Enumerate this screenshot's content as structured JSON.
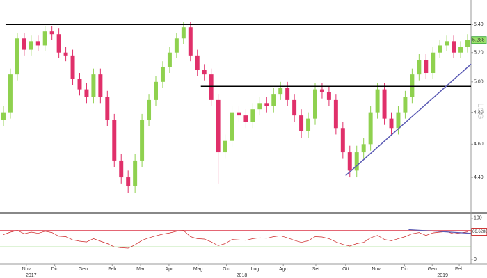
{
  "chart_data": [
    {
      "type": "candlestick",
      "log_scale": true,
      "watermark": "LOG",
      "up_color": "#8fd14f",
      "down_color": "#e0306a",
      "ylim": [
        4.2,
        5.58
      ],
      "xlim": [
        0,
        68
      ],
      "yticks": [
        {
          "value": 5.4,
          "label": "5.40"
        },
        {
          "value": 5.2,
          "label": "5.20"
        },
        {
          "value": 5.0,
          "label": "5.00"
        },
        {
          "value": 4.8,
          "label": "4.80"
        },
        {
          "value": 4.6,
          "label": "4.60"
        },
        {
          "value": 4.4,
          "label": "4.40"
        }
      ],
      "open": [
        4.75,
        4.8,
        5.05,
        5.3,
        5.22,
        5.28,
        5.25,
        5.35,
        5.33,
        5.2,
        5.18,
        5.02,
        4.95,
        4.9,
        5.05,
        4.9,
        4.75,
        4.5,
        4.4,
        4.35,
        4.5,
        4.75,
        4.88,
        5.0,
        5.1,
        5.2,
        5.3,
        5.38,
        5.18,
        5.08,
        5.05,
        4.88,
        4.55,
        4.62,
        4.8,
        4.78,
        4.74,
        4.82,
        4.86,
        4.84,
        4.92,
        4.96,
        4.88,
        4.78,
        4.68,
        4.76,
        4.95,
        4.93,
        4.88,
        4.7,
        4.55,
        4.44,
        4.55,
        4.6,
        4.8,
        4.95,
        4.76,
        4.7,
        4.8,
        4.9,
        5.05,
        5.15,
        5.06,
        5.2,
        5.25,
        5.28,
        5.2,
        5.24
      ],
      "high": [
        4.84,
        5.09,
        5.34,
        5.34,
        5.32,
        5.32,
        5.39,
        5.39,
        5.37,
        5.24,
        5.22,
        5.06,
        4.99,
        5.09,
        5.09,
        4.94,
        4.79,
        4.54,
        4.44,
        4.54,
        4.79,
        4.92,
        5.04,
        5.14,
        5.24,
        5.34,
        5.42,
        5.42,
        5.22,
        5.12,
        5.09,
        4.92,
        4.66,
        4.84,
        4.84,
        4.82,
        4.86,
        4.9,
        4.9,
        4.96,
        5.0,
        5.0,
        4.92,
        4.82,
        4.8,
        4.99,
        4.99,
        4.97,
        4.92,
        4.74,
        4.59,
        4.59,
        4.64,
        4.84,
        4.99,
        4.99,
        4.8,
        4.84,
        4.94,
        5.09,
        5.19,
        5.19,
        5.24,
        5.29,
        5.32,
        5.32,
        5.28,
        5.33
      ],
      "low": [
        4.71,
        4.76,
        5.01,
        5.18,
        5.18,
        5.21,
        5.21,
        5.29,
        5.16,
        5.14,
        4.98,
        4.91,
        4.86,
        4.86,
        4.86,
        4.71,
        4.46,
        4.36,
        4.31,
        4.31,
        4.46,
        4.71,
        4.84,
        4.96,
        5.06,
        5.16,
        5.26,
        5.14,
        5.04,
        5.01,
        4.84,
        4.36,
        4.51,
        4.58,
        4.74,
        4.7,
        4.7,
        4.78,
        4.8,
        4.8,
        4.88,
        4.84,
        4.74,
        4.64,
        4.64,
        4.72,
        4.89,
        4.84,
        4.66,
        4.51,
        4.4,
        4.4,
        4.51,
        4.56,
        4.76,
        4.72,
        4.66,
        4.66,
        4.76,
        4.86,
        5.01,
        5.02,
        5.02,
        5.16,
        5.21,
        5.16,
        5.16,
        5.2
      ],
      "close": [
        4.8,
        5.05,
        5.3,
        5.22,
        5.28,
        5.25,
        5.35,
        5.33,
        5.2,
        5.18,
        5.02,
        4.95,
        4.9,
        5.05,
        4.9,
        4.75,
        4.5,
        4.4,
        4.35,
        4.5,
        4.75,
        4.88,
        5.0,
        5.1,
        5.2,
        5.3,
        5.38,
        5.18,
        5.08,
        5.05,
        4.88,
        4.55,
        4.62,
        4.8,
        4.78,
        4.74,
        4.82,
        4.86,
        4.84,
        4.92,
        4.96,
        4.88,
        4.78,
        4.68,
        4.76,
        4.95,
        4.93,
        4.88,
        4.7,
        4.55,
        4.44,
        4.55,
        4.6,
        4.8,
        4.95,
        4.76,
        4.7,
        4.8,
        4.9,
        5.05,
        5.15,
        5.06,
        5.2,
        5.25,
        5.28,
        5.2,
        5.24,
        5.288
      ],
      "lines": [
        {
          "x": [
            0.8,
            68
          ],
          "y": [
            5.4,
            5.4
          ],
          "color": "#000000"
        },
        {
          "x": [
            29,
            68
          ],
          "y": [
            4.97,
            4.97
          ],
          "color": "#000000"
        },
        {
          "x": [
            49.9,
            68
          ],
          "y": [
            4.41,
            5.12
          ],
          "color": "#5a5ab4"
        }
      ]
    },
    {
      "type": "line",
      "color": "#cc2222",
      "ylim": [
        -12,
        110
      ],
      "xlim": [
        0,
        68
      ],
      "yticks": [
        100,
        0
      ],
      "bands": [
        {
          "value": 70,
          "color": "#e05060"
        },
        {
          "value": 30,
          "color": "#7ccf5e"
        }
      ],
      "values": [
        60,
        66,
        70,
        62,
        66,
        63,
        68,
        65,
        56,
        55,
        47,
        44,
        42,
        50,
        44,
        38,
        30,
        28,
        27,
        35,
        46,
        52,
        57,
        61,
        64,
        68,
        70,
        55,
        50,
        49,
        42,
        33,
        38,
        48,
        47,
        46,
        50,
        52,
        51,
        55,
        57,
        52,
        46,
        41,
        45,
        55,
        54,
        50,
        42,
        36,
        32,
        38,
        41,
        52,
        58,
        48,
        45,
        50,
        55,
        62,
        65,
        58,
        64,
        66,
        67,
        62,
        64,
        66.6288
      ],
      "lines": [
        {
          "x": [
            59,
            68
          ],
          "y": [
            72,
            63
          ],
          "color": "#5a5ab4"
        }
      ],
      "xticks": [
        {
          "value": 3.8,
          "label": "Nov"
        },
        {
          "value": 7.9,
          "label": "Dic"
        },
        {
          "value": 12.0,
          "label": "Gen"
        },
        {
          "value": 16.2,
          "label": "Feb"
        },
        {
          "value": 20.3,
          "label": "Mar"
        },
        {
          "value": 24.4,
          "label": "Apr"
        },
        {
          "value": 28.6,
          "label": "Mag"
        },
        {
          "value": 32.7,
          "label": "Giu"
        },
        {
          "value": 36.8,
          "label": "Lug"
        },
        {
          "value": 40.9,
          "label": "Ago"
        },
        {
          "value": 45.6,
          "label": "Set"
        },
        {
          "value": 49.9,
          "label": "Ott"
        },
        {
          "value": 54.3,
          "label": "Nov"
        },
        {
          "value": 58.4,
          "label": "Dic"
        },
        {
          "value": 62.4,
          "label": "Gen"
        },
        {
          "value": 66.3,
          "label": "Feb"
        }
      ],
      "year_ticks": [
        {
          "value": 4.5,
          "label": "2017"
        },
        {
          "value": 34.9,
          "label": "2018"
        },
        {
          "value": 63.9,
          "label": "2019"
        }
      ]
    }
  ]
}
